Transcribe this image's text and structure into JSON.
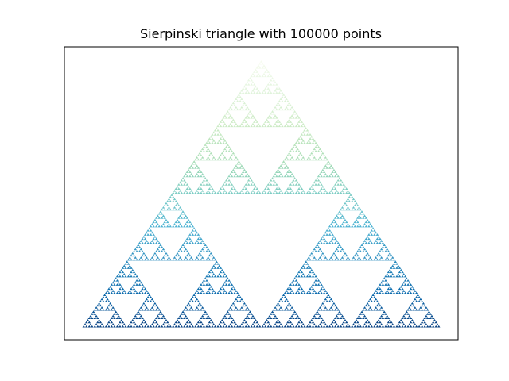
{
  "chart_data": {
    "type": "scatter",
    "title": "Sierpinski triangle with 100000 points",
    "point_count": 100000,
    "vertices": [
      [
        0,
        0
      ],
      [
        1,
        0
      ],
      [
        0.5,
        0.866
      ]
    ],
    "xlim": [
      -0.05,
      1.05
    ],
    "ylim": [
      -0.04,
      0.91
    ],
    "colormap": "GnBu",
    "color_stops": [
      "#f7fcf0",
      "#e0f3db",
      "#ccebc5",
      "#a8ddb5",
      "#7bccc4",
      "#4eb3d3",
      "#2b8cbe",
      "#0868ac",
      "#084081"
    ],
    "xticks": [],
    "yticks": [],
    "xlabel": "",
    "ylabel": "",
    "grid": false,
    "legend": false
  }
}
